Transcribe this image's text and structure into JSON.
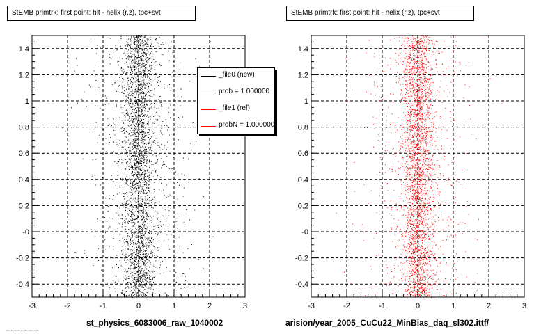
{
  "colors": {
    "new": "#000000",
    "ref": "#ff0000",
    "grid": "#000000",
    "background": "#ffffff"
  },
  "panels": [
    {
      "title": "StEMB primtrk: first point: hit - helix (r,z), tpc+svt",
      "xlabel": "st_physics_6083006_raw_1040002"
    },
    {
      "title": "StEMB primtrk: first point: hit - helix (r,z), tpc+svt",
      "xlabel": "arision/year_2005_CuCu22_MinBias_daq_sl302.ittf/"
    }
  ],
  "legend": {
    "entries": [
      {
        "label": "_file0 (new)",
        "color": "#000000"
      },
      {
        "label": "prob = 1.000000",
        "color": "#000000"
      },
      {
        "label": "_file1 (ref)",
        "color": "#ff0000"
      },
      {
        "label": "probN = 1.000000",
        "color": "#ff0000"
      }
    ]
  },
  "footer_scrap": "... .. ... . ... ... ...",
  "chart_data": [
    {
      "type": "scatter",
      "title": "StEMB primtrk: first point: hit - helix (r,z), tpc+svt",
      "xlabel": "st_physics_6083006_raw_1040002",
      "ylabel": "",
      "xlim": [
        -3,
        3
      ],
      "ylim": [
        -0.5,
        1.5
      ],
      "xticks": [
        -3,
        -2,
        -1,
        0,
        1,
        2,
        3
      ],
      "xtick_labels": [
        "-3",
        "-2",
        "-1",
        "0",
        "1",
        "2",
        "3"
      ],
      "yticks": [
        -0.4,
        -0.2,
        0,
        0.2,
        0.4,
        0.6,
        0.8,
        1.0,
        1.2,
        1.4
      ],
      "ytick_labels": [
        "-0.4",
        "-0.2",
        "-0",
        "0.2",
        "0.4",
        "0.6",
        "0.8",
        "1",
        "1.2",
        "1.4"
      ],
      "grid": true,
      "marker_color": "#000000",
      "distribution": {
        "center_x": 0.0,
        "core_sigma_x": 0.22,
        "halo_sigma_x": 0.75,
        "points": 3600
      }
    },
    {
      "type": "scatter",
      "title": "StEMB primtrk: first point: hit - helix (r,z), tpc+svt",
      "xlabel": "arision/year_2005_CuCu22_MinBias_daq_sl302.ittf/",
      "ylabel": "",
      "xlim": [
        -3,
        3
      ],
      "ylim": [
        -0.5,
        1.5
      ],
      "xticks": [
        -3,
        -2,
        -1,
        0,
        1,
        2,
        3
      ],
      "xtick_labels": [
        "-3",
        "-2",
        "-1",
        "0",
        "1",
        "2",
        "3"
      ],
      "yticks": [
        -0.4,
        -0.2,
        0,
        0.2,
        0.4,
        0.6,
        0.8,
        1.0,
        1.2,
        1.4
      ],
      "ytick_labels": [
        "-0.4",
        "-0.2",
        "-0",
        "0.2",
        "0.4",
        "0.6",
        "0.8",
        "1",
        "1.2",
        "1.4"
      ],
      "grid": true,
      "marker_color": "#ff0000",
      "distribution": {
        "center_x": 0.0,
        "core_sigma_x": 0.22,
        "halo_sigma_x": 0.75,
        "points": 3400
      }
    }
  ]
}
